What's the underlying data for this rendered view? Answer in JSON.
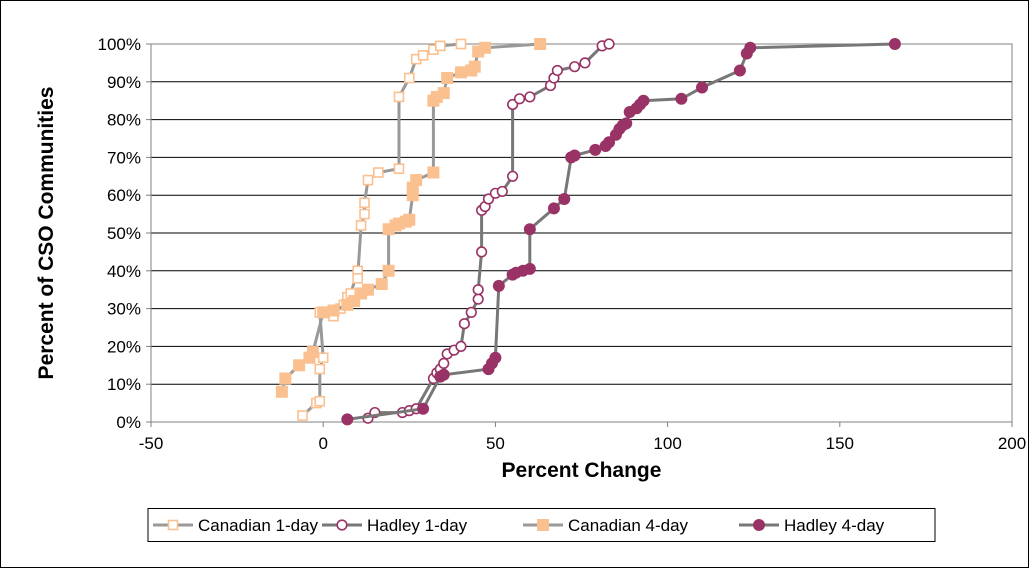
{
  "chart_data": {
    "type": "line",
    "title": "",
    "xlabel": "Percent Change",
    "ylabel": "Percent of CSO Communities",
    "xlim": [
      -50,
      200
    ],
    "ylim": [
      0,
      100
    ],
    "x_ticks": [
      -50,
      0,
      50,
      100,
      150,
      200
    ],
    "y_ticks": [
      0,
      10,
      20,
      30,
      40,
      50,
      60,
      70,
      80,
      90,
      100
    ],
    "y_tick_format": "%",
    "grid": "horizontal",
    "plot_background": "#ffffff",
    "legend_position": "bottom",
    "series": [
      {
        "name": "Canadian 1-day",
        "color": "#FAC090",
        "line_color": "#999999",
        "marker": "square-open",
        "points": [
          [
            -6,
            1.7
          ],
          [
            -2,
            5
          ],
          [
            -1,
            5.5
          ],
          [
            -1,
            14
          ],
          [
            0,
            17
          ],
          [
            -1,
            29
          ],
          [
            3,
            28
          ],
          [
            5,
            30
          ],
          [
            6,
            31
          ],
          [
            7,
            33
          ],
          [
            8,
            34
          ],
          [
            10,
            40
          ],
          [
            10,
            38
          ],
          [
            11,
            52
          ],
          [
            12,
            55
          ],
          [
            12,
            58
          ],
          [
            13,
            64
          ],
          [
            16,
            66
          ],
          [
            22,
            67
          ],
          [
            22,
            86
          ],
          [
            25,
            91
          ],
          [
            27,
            96
          ],
          [
            29,
            97
          ],
          [
            32,
            98.5
          ],
          [
            34,
            99.5
          ],
          [
            40,
            100
          ]
        ]
      },
      {
        "name": "Hadley 1-day",
        "color": "#993366",
        "line_color": "#777777",
        "marker": "circle-open",
        "points": [
          [
            13,
            1
          ],
          [
            15,
            2.5
          ],
          [
            23,
            2.5
          ],
          [
            25,
            3
          ],
          [
            27,
            3.5
          ],
          [
            32,
            11.5
          ],
          [
            33,
            13
          ],
          [
            34,
            14
          ],
          [
            35,
            15.5
          ],
          [
            36,
            18
          ],
          [
            38,
            19
          ],
          [
            40,
            20
          ],
          [
            41,
            26
          ],
          [
            43,
            29
          ],
          [
            45,
            32.5
          ],
          [
            45,
            35
          ],
          [
            46,
            45
          ],
          [
            46,
            56
          ],
          [
            47,
            57
          ],
          [
            48,
            59
          ],
          [
            50,
            60.5
          ],
          [
            52,
            61
          ],
          [
            55,
            65
          ],
          [
            55,
            84
          ],
          [
            57,
            85.5
          ],
          [
            60,
            86
          ],
          [
            66,
            89
          ],
          [
            67,
            91
          ],
          [
            68,
            93
          ],
          [
            73,
            94
          ],
          [
            76,
            95
          ],
          [
            81,
            99.5
          ],
          [
            83,
            100
          ]
        ]
      },
      {
        "name": "Canadian 4-day",
        "color": "#FAC090",
        "line_color": "#999999",
        "marker": "square-filled",
        "points": [
          [
            -12,
            8
          ],
          [
            -11,
            11.5
          ],
          [
            -7,
            15
          ],
          [
            -4,
            17
          ],
          [
            -3,
            18.5
          ],
          [
            0,
            29
          ],
          [
            3,
            29.5
          ],
          [
            7,
            31
          ],
          [
            9,
            32
          ],
          [
            11,
            34
          ],
          [
            13,
            35
          ],
          [
            17,
            36.5
          ],
          [
            19,
            40
          ],
          [
            19,
            51
          ],
          [
            21,
            52
          ],
          [
            22,
            52.5
          ],
          [
            24,
            53
          ],
          [
            25,
            53.5
          ],
          [
            26,
            60
          ],
          [
            26,
            62
          ],
          [
            27,
            64
          ],
          [
            32,
            66
          ],
          [
            32,
            85
          ],
          [
            33,
            86
          ],
          [
            35,
            87
          ],
          [
            36,
            91
          ],
          [
            40,
            92.5
          ],
          [
            43,
            93
          ],
          [
            44,
            94
          ],
          [
            45,
            98
          ],
          [
            47,
            99
          ],
          [
            63,
            100
          ]
        ]
      },
      {
        "name": "Hadley 4-day",
        "color": "#993366",
        "line_color": "#777777",
        "marker": "circle-filled",
        "points": [
          [
            7,
            0.7
          ],
          [
            29,
            3.5
          ],
          [
            34,
            12
          ],
          [
            35,
            12.5
          ],
          [
            48,
            14
          ],
          [
            49,
            15.5
          ],
          [
            50,
            17
          ],
          [
            51,
            36
          ],
          [
            55,
            39
          ],
          [
            56,
            39.5
          ],
          [
            58,
            40
          ],
          [
            60,
            40.5
          ],
          [
            60,
            51
          ],
          [
            67,
            56.5
          ],
          [
            70,
            59
          ],
          [
            72,
            70
          ],
          [
            73,
            70.5
          ],
          [
            79,
            72
          ],
          [
            82,
            73
          ],
          [
            83,
            74
          ],
          [
            85,
            76
          ],
          [
            86,
            77.5
          ],
          [
            87,
            78.5
          ],
          [
            88,
            79
          ],
          [
            89,
            82
          ],
          [
            91,
            83
          ],
          [
            92,
            84
          ],
          [
            93,
            85
          ],
          [
            104,
            85.5
          ],
          [
            110,
            88.5
          ],
          [
            121,
            93
          ],
          [
            123,
            97.5
          ],
          [
            124,
            99
          ],
          [
            166,
            100
          ]
        ]
      }
    ]
  }
}
